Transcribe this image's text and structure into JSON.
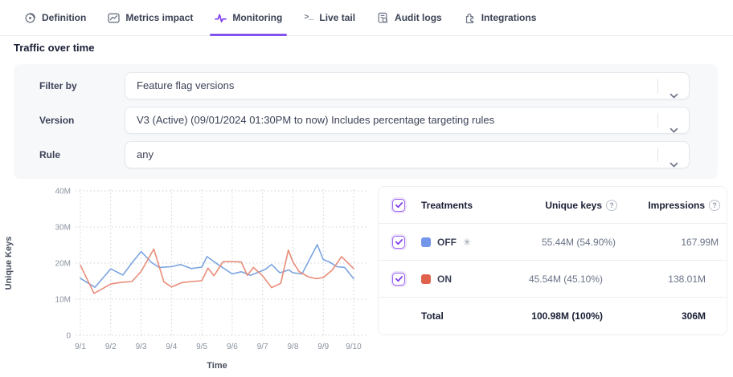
{
  "tabs": [
    {
      "label": "Definition",
      "icon": "definition-icon",
      "active": false
    },
    {
      "label": "Metrics impact",
      "icon": "metrics-impact-icon",
      "active": false
    },
    {
      "label": "Monitoring",
      "icon": "monitoring-icon",
      "active": true
    },
    {
      "label": "Live tail",
      "icon": "live-tail-icon",
      "active": false
    },
    {
      "label": "Audit logs",
      "icon": "audit-logs-icon",
      "active": false
    },
    {
      "label": "Integrations",
      "icon": "integrations-icon",
      "active": false
    }
  ],
  "page": {
    "section_title": "Traffic over time"
  },
  "filters": [
    {
      "label": "Filter by",
      "value": "Feature flag versions"
    },
    {
      "label": "Version",
      "value": "V3 (Active) (09/01/2024 01:30PM to now) Includes percentage targeting rules"
    },
    {
      "label": "Rule",
      "value": "any"
    }
  ],
  "chart_data": {
    "type": "line",
    "title": "Traffic over time",
    "xlabel": "Time",
    "ylabel": "Unique Keys",
    "x_ticks": [
      "9/1",
      "9/2",
      "9/3",
      "9/4",
      "9/5",
      "9/6",
      "9/7",
      "9/8",
      "9/9",
      "9/10"
    ],
    "y_ticks": [
      "40M",
      "30M",
      "20M",
      "10M",
      "0"
    ],
    "y_tick_values": [
      40,
      30,
      20,
      10,
      0
    ],
    "ylim": [
      0,
      40
    ],
    "grid": "dotted",
    "legend_position": "table-right",
    "series": [
      {
        "name": "OFF",
        "color": "#7ba4e0",
        "unit": "M uniques",
        "points": [
          [
            0,
            15.8
          ],
          [
            0.48,
            13.3
          ],
          [
            1,
            18.4
          ],
          [
            1.4,
            16.7
          ],
          [
            1.72,
            20.3
          ],
          [
            2,
            23.2
          ],
          [
            2.35,
            20.1
          ],
          [
            2.6,
            18.8
          ],
          [
            3,
            19.0
          ],
          [
            3.3,
            19.6
          ],
          [
            3.65,
            18.5
          ],
          [
            4,
            18.9
          ],
          [
            4.17,
            21.8
          ],
          [
            4.5,
            19.8
          ],
          [
            5,
            17.0
          ],
          [
            5.3,
            17.6
          ],
          [
            5.6,
            16.6
          ],
          [
            6.08,
            18.2
          ],
          [
            6.3,
            19.6
          ],
          [
            6.57,
            17.3
          ],
          [
            6.86,
            18.1
          ],
          [
            7,
            17.3
          ],
          [
            7.3,
            17.0
          ],
          [
            7.8,
            25.1
          ],
          [
            8,
            21.0
          ],
          [
            8.2,
            20.3
          ],
          [
            8.45,
            19.0
          ],
          [
            8.7,
            18.8
          ],
          [
            9,
            15.7
          ]
        ]
      },
      {
        "name": "ON",
        "color": "#e98c79",
        "unit": "M uniques",
        "points": [
          [
            0,
            19.4
          ],
          [
            0.45,
            11.6
          ],
          [
            1,
            14.2
          ],
          [
            1.35,
            14.7
          ],
          [
            1.7,
            14.9
          ],
          [
            2,
            17.7
          ],
          [
            2.42,
            23.9
          ],
          [
            2.75,
            14.8
          ],
          [
            3,
            13.4
          ],
          [
            3.35,
            14.6
          ],
          [
            3.65,
            14.9
          ],
          [
            4,
            15.1
          ],
          [
            4.2,
            18.6
          ],
          [
            4.4,
            16.5
          ],
          [
            4.7,
            20.4
          ],
          [
            5,
            20.4
          ],
          [
            5.3,
            20.3
          ],
          [
            5.5,
            16.6
          ],
          [
            5.7,
            18.8
          ],
          [
            6,
            16.5
          ],
          [
            6.3,
            13.2
          ],
          [
            6.6,
            14.4
          ],
          [
            6.85,
            23.6
          ],
          [
            7,
            20.3
          ],
          [
            7.2,
            17.7
          ],
          [
            7.5,
            16.2
          ],
          [
            7.76,
            15.7
          ],
          [
            8,
            16.0
          ],
          [
            8.3,
            18.1
          ],
          [
            8.6,
            21.8
          ],
          [
            9,
            18.5
          ]
        ]
      }
    ]
  },
  "table": {
    "headers": {
      "treatments": "Treatments",
      "unique_keys": "Unique keys",
      "impressions": "Impressions"
    },
    "help_glyph": "?",
    "rows": [
      {
        "name": "OFF",
        "color": "#7395ea",
        "default_indicator": "✳",
        "checked": true,
        "unique_keys": "55.44M (54.90%)",
        "impressions": "167.99M"
      },
      {
        "name": "ON",
        "color": "#e0614c",
        "default_indicator": "",
        "checked": true,
        "unique_keys": "45.54M (45.10%)",
        "impressions": "138.01M"
      }
    ],
    "total": {
      "label": "Total",
      "unique_keys": "100.98M (100%)",
      "impressions": "306M"
    }
  },
  "colors": {
    "accent_purple": "#7c3aed",
    "tab_underline": "#8352f0",
    "off_line": "#7ba4e0",
    "on_line": "#e98c79",
    "off_swatch": "#7395ea",
    "on_swatch": "#e0614c",
    "panel_bg": "#f7f8fa"
  }
}
